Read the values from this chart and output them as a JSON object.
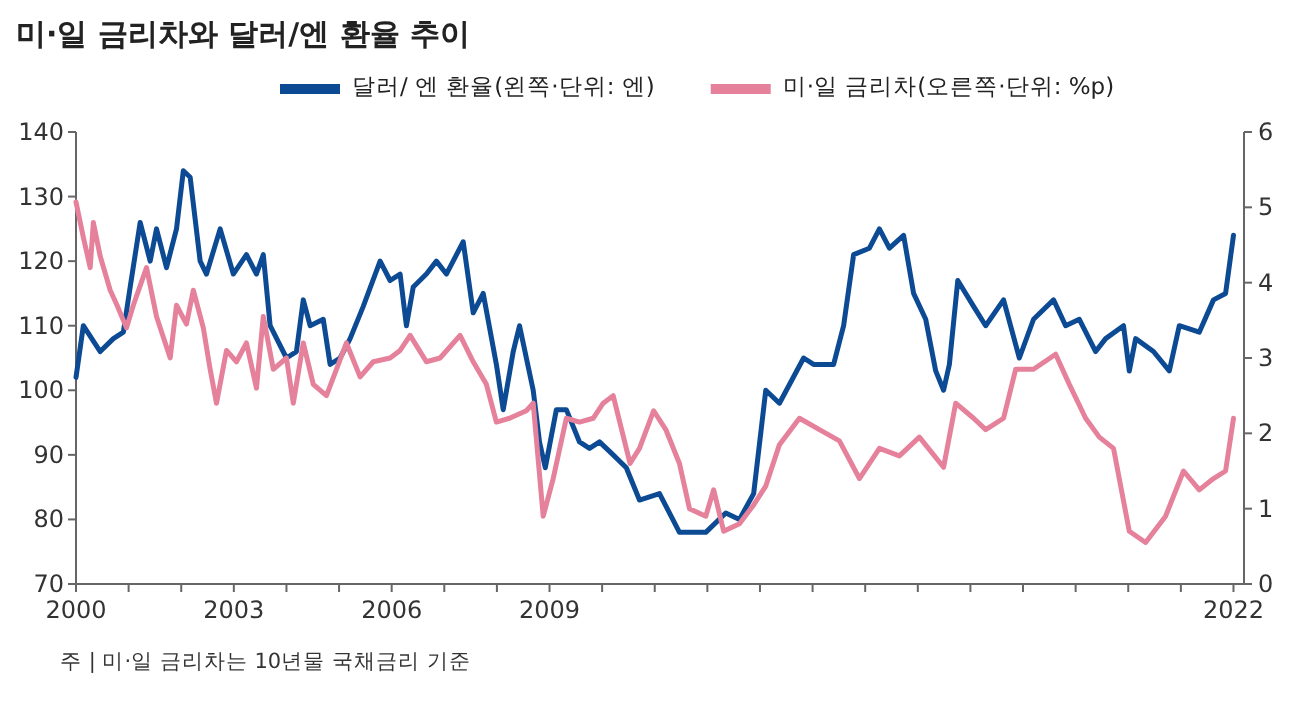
{
  "chart_data": {
    "type": "line",
    "title": "미·일 금리차와 달러/엔 환율 추이",
    "annotations": [
      "주 | 미·일 금리차는 10년물 국채금리 기준"
    ],
    "legend": "top",
    "grid": false,
    "marker": "none",
    "line_style": "solid",
    "xlim": [
      2000,
      2022.2
    ],
    "xticks": [
      {
        "value": 2000,
        "label": "2000"
      },
      {
        "value": 2001,
        "label": null
      },
      {
        "value": 2002,
        "label": null
      },
      {
        "value": 2003,
        "label": "2003"
      },
      {
        "value": 2004,
        "label": null
      },
      {
        "value": 2005,
        "label": null
      },
      {
        "value": 2006,
        "label": "2006"
      },
      {
        "value": 2007,
        "label": null
      },
      {
        "value": 2008,
        "label": null
      },
      {
        "value": 2009,
        "label": "2009"
      },
      {
        "value": 2010,
        "label": null
      },
      {
        "value": 2011,
        "label": null
      },
      {
        "value": 2012,
        "label": null
      },
      {
        "value": 2013,
        "label": null
      },
      {
        "value": 2014,
        "label": null
      },
      {
        "value": 2015,
        "label": null
      },
      {
        "value": 2016,
        "label": null
      },
      {
        "value": 2017,
        "label": null
      },
      {
        "value": 2018,
        "label": null
      },
      {
        "value": 2019,
        "label": null
      },
      {
        "value": 2020,
        "label": null
      },
      {
        "value": 2021,
        "label": null
      },
      {
        "value": 2022,
        "label": "2022"
      }
    ],
    "ylim": [
      70,
      140
    ],
    "yticks": [
      70,
      80,
      90,
      100,
      110,
      120,
      130,
      140
    ],
    "y2lim": [
      0,
      6
    ],
    "y2ticks": [
      0,
      1,
      2,
      3,
      4,
      5,
      6
    ],
    "series": [
      {
        "name": "달러/ 엔 환율(왼쪽·단위: 엔)",
        "color": "#0d4a94",
        "x": [
          2000.0,
          2000.14,
          2000.46,
          2000.71,
          2000.9,
          2001.03,
          2001.22,
          2001.41,
          2001.53,
          2001.72,
          2001.91,
          2002.04,
          2002.17,
          2002.36,
          2002.48,
          2002.74,
          2002.99,
          2003.24,
          2003.43,
          2003.56,
          2003.69,
          2004.0,
          2004.19,
          2004.32,
          2004.45,
          2004.7,
          2004.83,
          2005.02,
          2005.21,
          2005.46,
          2005.78,
          2005.97,
          2006.16,
          2006.28,
          2006.41,
          2006.66,
          2006.85,
          2007.04,
          2007.36,
          2007.55,
          2007.74,
          2007.99,
          2008.12,
          2008.31,
          2008.43,
          2008.69,
          2008.81,
          2008.92,
          2009.13,
          2009.32,
          2009.57,
          2009.76,
          2009.95,
          2010.21,
          2010.46,
          2010.71,
          2011.09,
          2011.47,
          2011.97,
          2012.35,
          2012.61,
          2012.88,
          2013.11,
          2013.37,
          2013.83,
          2014.02,
          2014.4,
          2014.59,
          2014.78,
          2015.08,
          2015.27,
          2015.46,
          2015.73,
          2015.92,
          2016.15,
          2016.34,
          2016.49,
          2016.6,
          2016.76,
          2017.06,
          2017.29,
          2017.63,
          2017.93,
          2018.2,
          2018.58,
          2018.81,
          2019.07,
          2019.38,
          2019.57,
          2019.91,
          2020.02,
          2020.14,
          2020.48,
          2020.78,
          2020.97,
          2021.35,
          2021.62,
          2021.85,
          2022.0
        ],
        "values": [
          102,
          110,
          106,
          108,
          109,
          116,
          126,
          120,
          125,
          119,
          125,
          134,
          133,
          120,
          118,
          125,
          118,
          121,
          118,
          121,
          110,
          105,
          106,
          114,
          110,
          111,
          104,
          105,
          108,
          113,
          120,
          117,
          118,
          110,
          116,
          118,
          120,
          118,
          123,
          112,
          115,
          104,
          97,
          106,
          110,
          100,
          92,
          88,
          97,
          97,
          92,
          91,
          92,
          90,
          88,
          83,
          84,
          78,
          78,
          81,
          80,
          84,
          100,
          98,
          105,
          104,
          104,
          110,
          121,
          122,
          125,
          122,
          124,
          115,
          111,
          103,
          100,
          104,
          117,
          113,
          110,
          114,
          105,
          111,
          114,
          110,
          111,
          106,
          108,
          110,
          103,
          108,
          106,
          103,
          110,
          109,
          114,
          115,
          124
        ]
      },
      {
        "name": "미·일 금리차(오른쪽·단위: %p)",
        "color": "#e5819b",
        "axis": "y2",
        "x": [
          2000.0,
          2000.14,
          2000.27,
          2000.33,
          2000.46,
          2000.65,
          2000.78,
          2000.96,
          2001.09,
          2001.34,
          2001.53,
          2001.79,
          2001.91,
          2002.1,
          2002.23,
          2002.42,
          2002.55,
          2002.67,
          2002.86,
          2003.05,
          2003.24,
          2003.43,
          2003.56,
          2003.75,
          2004.0,
          2004.13,
          2004.32,
          2004.51,
          2004.76,
          2004.95,
          2005.14,
          2005.4,
          2005.65,
          2005.97,
          2006.16,
          2006.35,
          2006.66,
          2006.92,
          2007.3,
          2007.55,
          2007.8,
          2007.99,
          2008.24,
          2008.56,
          2008.69,
          2008.88,
          2009.07,
          2009.32,
          2009.57,
          2009.83,
          2010.02,
          2010.21,
          2010.53,
          2010.71,
          2010.98,
          2011.21,
          2011.47,
          2011.66,
          2011.97,
          2012.12,
          2012.31,
          2012.61,
          2012.88,
          2013.11,
          2013.37,
          2013.75,
          2014.13,
          2014.51,
          2014.89,
          2015.27,
          2015.65,
          2016.03,
          2016.49,
          2016.72,
          2017.06,
          2017.29,
          2017.63,
          2017.86,
          2018.2,
          2018.62,
          2018.88,
          2019.19,
          2019.45,
          2019.72,
          2020.02,
          2020.33,
          2020.71,
          2021.05,
          2021.35,
          2021.62,
          2021.85,
          2022.0
        ],
        "values": [
          5.07,
          4.6,
          4.2,
          4.8,
          4.35,
          3.9,
          3.7,
          3.4,
          3.7,
          4.2,
          3.55,
          3.0,
          3.7,
          3.45,
          3.9,
          3.4,
          2.85,
          2.4,
          3.1,
          2.95,
          3.2,
          2.6,
          3.55,
          2.85,
          3.0,
          2.4,
          3.2,
          2.65,
          2.5,
          2.85,
          3.2,
          2.75,
          2.95,
          3.0,
          3.1,
          3.3,
          2.95,
          3.0,
          3.3,
          2.95,
          2.65,
          2.15,
          2.2,
          2.3,
          2.4,
          0.9,
          1.4,
          2.2,
          2.15,
          2.2,
          2.4,
          2.5,
          1.6,
          1.8,
          2.3,
          2.05,
          1.6,
          1.0,
          0.9,
          1.25,
          0.7,
          0.8,
          1.05,
          1.3,
          1.85,
          2.2,
          2.05,
          1.9,
          1.4,
          1.8,
          1.7,
          1.95,
          1.55,
          2.4,
          2.2,
          2.05,
          2.2,
          2.85,
          2.85,
          3.05,
          2.65,
          2.2,
          1.95,
          1.8,
          0.7,
          0.55,
          0.9,
          1.5,
          1.25,
          1.4,
          1.5,
          2.2
        ]
      }
    ]
  }
}
